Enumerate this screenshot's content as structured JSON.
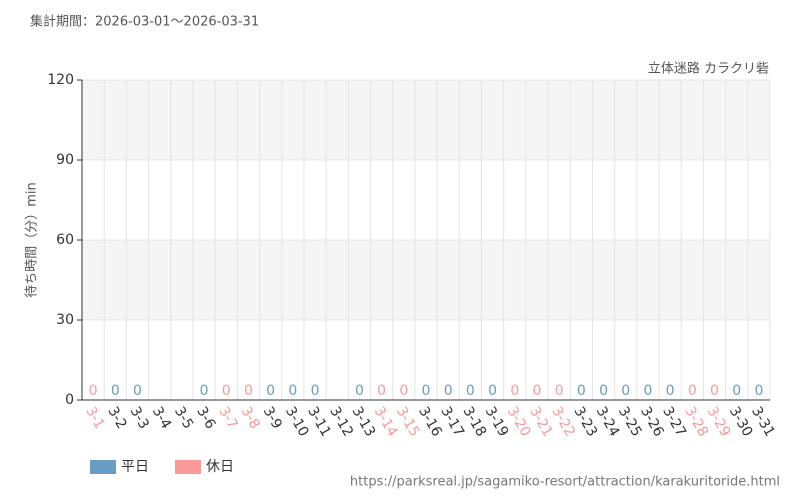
{
  "chart_data": {
    "type": "bar",
    "subtitle": "集計期間：2026-03-01～2026-03-31",
    "title": "立体迷路 カラクリ砦",
    "y_label": "待ち時間（分）min",
    "source": "https://parksreal.jp/sagamiko-resort/attraction/karakuritoride.html",
    "categories": [
      "3-1",
      "3-2",
      "3-3",
      "3-4",
      "3-5",
      "3-6",
      "3-7",
      "3-8",
      "3-9",
      "3-10",
      "3-11",
      "3-12",
      "3-13",
      "3-14",
      "3-15",
      "3-16",
      "3-17",
      "3-18",
      "3-19",
      "3-20",
      "3-21",
      "3-22",
      "3-23",
      "3-24",
      "3-25",
      "3-26",
      "3-27",
      "3-28",
      "3-29",
      "3-30",
      "3-31"
    ],
    "series": [
      {
        "name": "平日",
        "color": "#6a9bc3",
        "values": [
          null,
          0,
          0,
          null,
          null,
          0,
          null,
          null,
          0,
          0,
          0,
          null,
          0,
          null,
          null,
          0,
          0,
          0,
          0,
          null,
          null,
          null,
          0,
          0,
          0,
          0,
          0,
          null,
          null,
          0,
          0
        ]
      },
      {
        "name": "休日",
        "color": "#f99999",
        "values": [
          0,
          null,
          null,
          null,
          null,
          null,
          0,
          0,
          null,
          null,
          null,
          null,
          null,
          0,
          0,
          null,
          null,
          null,
          null,
          0,
          0,
          0,
          null,
          null,
          null,
          null,
          null,
          0,
          0,
          null,
          null
        ]
      }
    ],
    "ylim": [
      0,
      120
    ],
    "yticks": [
      0,
      30,
      60,
      90,
      120
    ],
    "grid": true,
    "legend": "bottom-left"
  }
}
